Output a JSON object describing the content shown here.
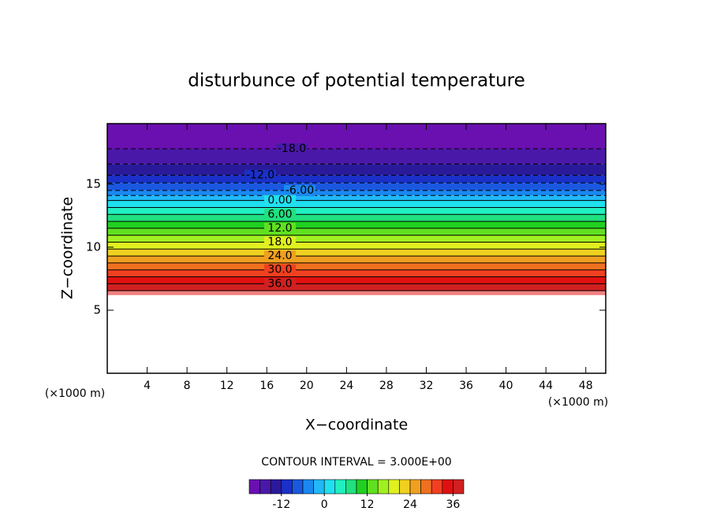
{
  "chart_data": {
    "type": "contour",
    "title": "disturbunce of potential temperature",
    "x_label": "X−coordinate",
    "y_label": "Z−coordinate",
    "x_unit_left": "(×1000 m)",
    "x_unit_right": "(×1000 m)",
    "xlim": [
      0,
      50
    ],
    "ylim": [
      0,
      19.8
    ],
    "xticks": [
      4,
      8,
      12,
      16,
      20,
      24,
      28,
      32,
      36,
      40,
      44,
      48
    ],
    "yticks": [
      5,
      10,
      15
    ],
    "levels": [
      -21,
      -18,
      -15,
      -12,
      -9,
      -6,
      -3,
      0,
      3,
      6,
      9,
      12,
      15,
      18,
      21,
      24,
      27,
      30,
      33,
      36,
      39
    ],
    "level_z": [
      19.8,
      17.8,
      16.6,
      15.7,
      15.1,
      14.5,
      14.1,
      13.7,
      13.15,
      12.6,
      12.05,
      11.5,
      10.95,
      10.4,
      9.85,
      9.3,
      8.75,
      8.2,
      7.65,
      7.1,
      6.55
    ],
    "field_base_z": 6.2,
    "colors": [
      "#6a10b0",
      "#4a18a8",
      "#2a1a9a",
      "#1a30c8",
      "#1a58e0",
      "#1a88f0",
      "#20b8f8",
      "#20e0f0",
      "#20f0c0",
      "#20e080",
      "#20d020",
      "#60e020",
      "#a0f020",
      "#e0f020",
      "#f0d020",
      "#f0a020",
      "#f07020",
      "#f04020",
      "#e01010",
      "#d02020",
      "#f08080"
    ],
    "negative_dashed": true,
    "contour_labels": [
      {
        "value": -18,
        "label": "-18.0"
      },
      {
        "value": -12,
        "label": "-12.0"
      },
      {
        "value": -6,
        "label": "-6.00"
      },
      {
        "value": 0,
        "label": "0.00"
      },
      {
        "value": 6,
        "label": "6.00"
      },
      {
        "value": 12,
        "label": "12.0"
      },
      {
        "value": 18,
        "label": "18.0"
      },
      {
        "value": 24,
        "label": "24.0"
      },
      {
        "value": 30,
        "label": "30.0"
      },
      {
        "value": 36,
        "label": "36.0"
      }
    ],
    "contour_interval_text": "CONTOUR INTERVAL = 3.000E+00",
    "colorbar_ticks": [
      -12,
      0,
      12,
      24,
      36
    ]
  }
}
